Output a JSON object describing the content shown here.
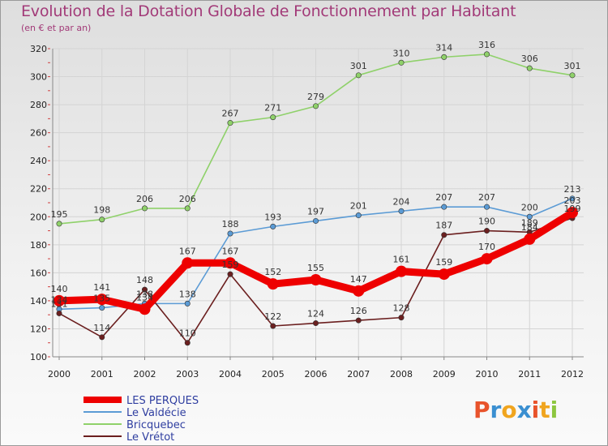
{
  "title": "Evolution de la Dotation Globale de Fonctionnement par Habitant",
  "subtitle": "(en € et par an)",
  "logo": {
    "text": "Proxiti",
    "colors": [
      "#e8532b",
      "#3a8fd1",
      "#f0a51f",
      "#3a8fd1",
      "#e8532b",
      "#f0a51f",
      "#8dc63f"
    ]
  },
  "chart_data": {
    "type": "line",
    "title": "Evolution de la Dotation Globale de Fonctionnement par Habitant",
    "subtitle": "(en € et par an)",
    "xlabel": "",
    "ylabel": "",
    "x": [
      2000,
      2001,
      2002,
      2003,
      2004,
      2005,
      2006,
      2007,
      2008,
      2009,
      2010,
      2011,
      2012
    ],
    "ylim": [
      100,
      320
    ],
    "yticks": [
      100,
      120,
      140,
      160,
      180,
      200,
      220,
      240,
      260,
      280,
      300,
      320
    ],
    "grid": true,
    "legend_position": "bottom-left",
    "series": [
      {
        "name": "LES PERQUES",
        "color": "#ee0000",
        "weight": "bold",
        "values": [
          140,
          141,
          134,
          167,
          167,
          152,
          155,
          147,
          161,
          159,
          170,
          184,
          203
        ],
        "labels": [
          "140",
          "141",
          "134",
          "167",
          "167",
          "152",
          "155",
          "147",
          "161",
          "159",
          "170",
          "184",
          "203"
        ]
      },
      {
        "name": "Le Valdécie",
        "color": "#5b9bd5",
        "weight": "normal",
        "values": [
          134,
          135,
          138,
          138,
          188,
          193,
          197,
          201,
          204,
          207,
          207,
          200,
          213
        ],
        "labels": [
          "134",
          "135",
          "138",
          "138",
          "188",
          "193",
          "197",
          "201",
          "204",
          "207",
          "207",
          "200",
          "213"
        ]
      },
      {
        "name": "Bricquebec",
        "color": "#8fd16a",
        "weight": "normal",
        "values": [
          195,
          198,
          206,
          206,
          267,
          271,
          279,
          301,
          310,
          314,
          316,
          306,
          301
        ],
        "labels": [
          "195",
          "198",
          "206",
          "206",
          "267",
          "271",
          "279",
          "301",
          "310",
          "314",
          "316",
          "306",
          "301"
        ]
      },
      {
        "name": "Le Vrétot",
        "color": "#6b1f1f",
        "weight": "normal",
        "values": [
          131,
          114,
          148,
          110,
          159,
          122,
          124,
          126,
          128,
          187,
          190,
          189,
          199
        ],
        "labels": [
          "131",
          "114",
          "148",
          "110",
          "159",
          "122",
          "124",
          "126",
          "128",
          "187",
          "190",
          "189",
          "199"
        ]
      }
    ]
  }
}
